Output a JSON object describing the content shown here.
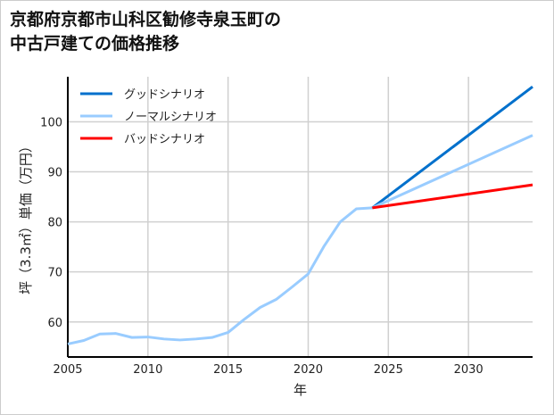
{
  "chart_data": {
    "type": "line",
    "title": [
      "京都府京都市山科区勧修寺泉玉町の",
      "中古戸建ての価格推移"
    ],
    "xlabel": "年",
    "ylabel": "坪（3.3㎡）単価（万円）",
    "xlim": [
      2005,
      2034
    ],
    "ylim": [
      53,
      109
    ],
    "xticks": [
      2005,
      2010,
      2015,
      2020,
      2025,
      2030
    ],
    "yticks": [
      60,
      70,
      80,
      90,
      100
    ],
    "grid": true,
    "legend_position": "top-left",
    "history": {
      "x": [
        2005,
        2006,
        2007,
        2008,
        2009,
        2010,
        2011,
        2012,
        2013,
        2014,
        2015,
        2016,
        2017,
        2018,
        2019,
        2020,
        2021,
        2022,
        2023,
        2024
      ],
      "y": [
        55.6,
        56.3,
        57.6,
        57.7,
        56.9,
        57.0,
        56.6,
        56.4,
        56.6,
        56.9,
        57.9,
        60.5,
        62.9,
        64.5,
        67.0,
        69.6,
        75.2,
        80.0,
        82.6,
        82.8
      ]
    },
    "series": [
      {
        "name": "グッドシナリオ",
        "color": "#0070cc",
        "x": [
          2024,
          2034
        ],
        "y": [
          82.8,
          107.0
        ]
      },
      {
        "name": "ノーマルシナリオ",
        "color": "#99ccff",
        "x": [
          2024,
          2034
        ],
        "y": [
          82.8,
          97.3
        ]
      },
      {
        "name": "バッドシナリオ",
        "color": "#ff0000",
        "x": [
          2024,
          2034
        ],
        "y": [
          82.8,
          87.4
        ]
      }
    ]
  }
}
